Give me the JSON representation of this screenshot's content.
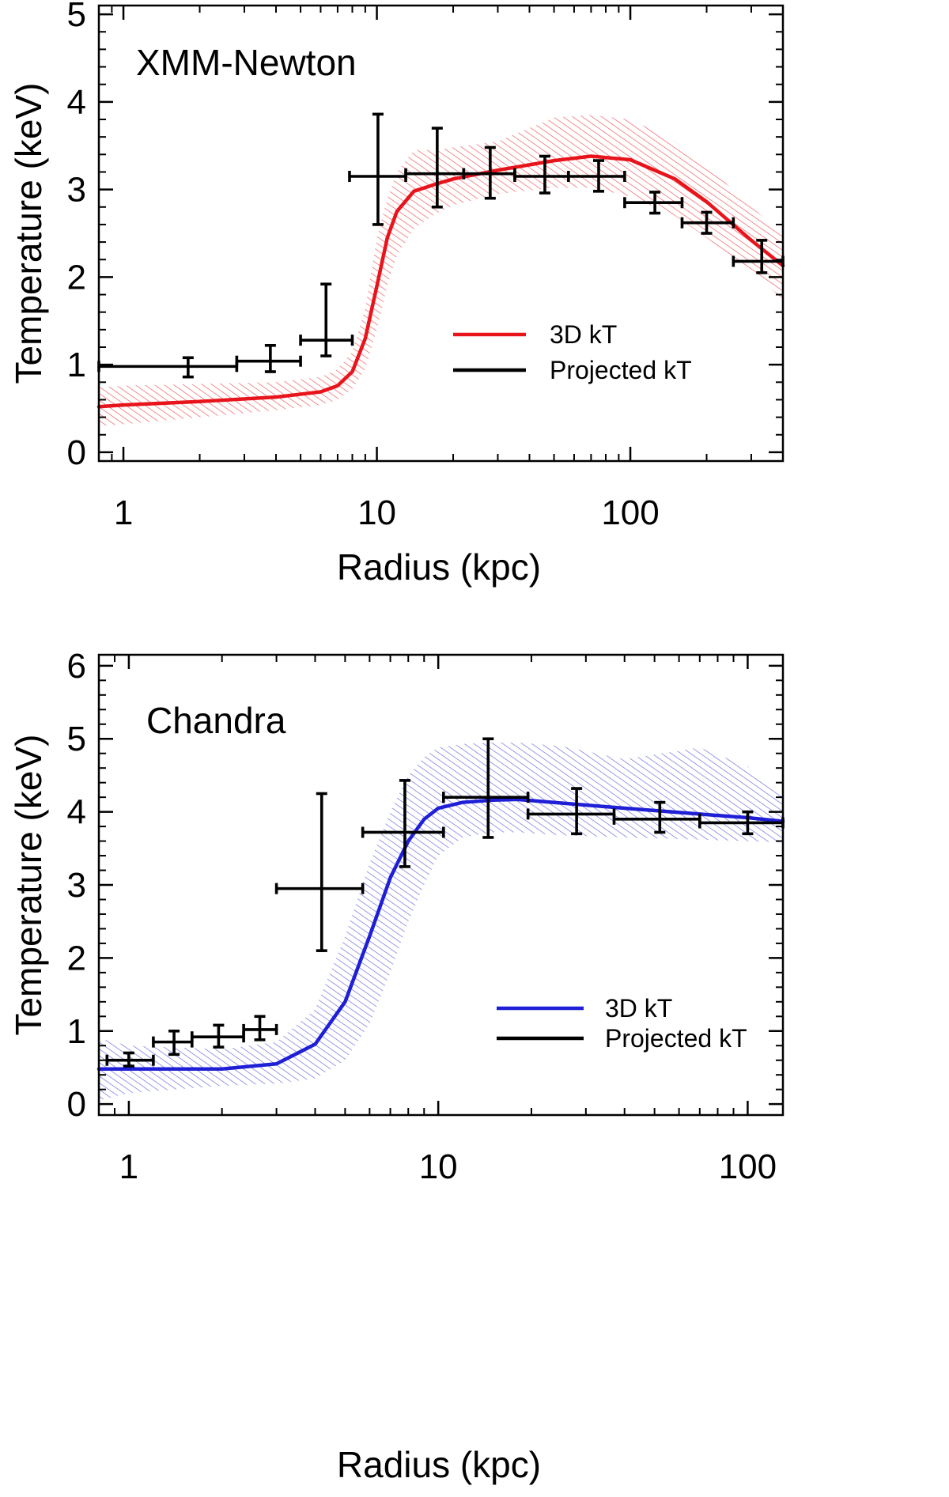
{
  "chart_data": [
    {
      "type": "line",
      "title": "XMM-Newton",
      "xlabel": "Radius (kpc)",
      "ylabel": "Temperature (keV)",
      "xscale": "log",
      "xlim": [
        0.8,
        400
      ],
      "ylim": [
        -0.1,
        5.1
      ],
      "xticks": [
        1,
        10,
        100
      ],
      "xtick_labels": [
        "1",
        "10",
        "100"
      ],
      "yticks": [
        0,
        1,
        2,
        3,
        4,
        5
      ],
      "ytick_labels": [
        "0",
        "1",
        "2",
        "3",
        "4",
        "5"
      ],
      "colors": {
        "model": "#e8141b",
        "band": "#e8141b",
        "data": "#000000"
      },
      "legend": {
        "position": "lower-right",
        "entries": [
          "3D kT",
          "Projected kT"
        ]
      },
      "series": [
        {
          "name": "3D kT",
          "kind": "model_line",
          "x": [
            0.8,
            1,
            2,
            4,
            6,
            7,
            8,
            9,
            10,
            11,
            12,
            14,
            17,
            20,
            30,
            50,
            70,
            100,
            150,
            200,
            300,
            400
          ],
          "y": [
            0.52,
            0.54,
            0.58,
            0.63,
            0.69,
            0.76,
            0.92,
            1.3,
            1.9,
            2.45,
            2.75,
            2.98,
            3.06,
            3.12,
            3.22,
            3.33,
            3.38,
            3.34,
            3.12,
            2.86,
            2.42,
            2.13
          ],
          "lower": [
            0.3,
            0.32,
            0.4,
            0.48,
            0.54,
            0.6,
            0.72,
            0.95,
            1.4,
            1.9,
            2.25,
            2.55,
            2.72,
            2.82,
            2.95,
            3.02,
            3.02,
            2.92,
            2.7,
            2.45,
            2.05,
            1.75
          ],
          "upper": [
            0.74,
            0.76,
            0.78,
            0.8,
            0.86,
            0.95,
            1.15,
            1.65,
            2.45,
            2.9,
            3.2,
            3.45,
            3.45,
            3.48,
            3.55,
            3.82,
            3.85,
            3.8,
            3.55,
            3.28,
            2.8,
            2.5
          ]
        },
        {
          "name": "Projected kT",
          "kind": "data_points",
          "points": [
            {
              "x": 1.8,
              "xlo": 0.8,
              "xhi": 2.8,
              "y": 0.98,
              "ylo": 0.86,
              "yhi": 1.08
            },
            {
              "x": 3.8,
              "xlo": 2.8,
              "xhi": 5.0,
              "y": 1.04,
              "ylo": 0.92,
              "yhi": 1.22
            },
            {
              "x": 6.3,
              "xlo": 5.0,
              "xhi": 8.0,
              "y": 1.28,
              "ylo": 1.1,
              "yhi": 1.92
            },
            {
              "x": 10.1,
              "xlo": 7.8,
              "xhi": 13.0,
              "y": 3.15,
              "ylo": 2.6,
              "yhi": 3.86
            },
            {
              "x": 17.3,
              "xlo": 13.0,
              "xhi": 22.0,
              "y": 3.18,
              "ylo": 2.8,
              "yhi": 3.7
            },
            {
              "x": 28.0,
              "xlo": 22.0,
              "xhi": 35.0,
              "y": 3.18,
              "ylo": 2.9,
              "yhi": 3.48
            },
            {
              "x": 46.0,
              "xlo": 35.0,
              "xhi": 57.0,
              "y": 3.15,
              "ylo": 2.96,
              "yhi": 3.38
            },
            {
              "x": 75.0,
              "xlo": 57.0,
              "xhi": 95.0,
              "y": 3.15,
              "ylo": 2.98,
              "yhi": 3.33
            },
            {
              "x": 125.0,
              "xlo": 95.0,
              "xhi": 160.0,
              "y": 2.85,
              "ylo": 2.73,
              "yhi": 2.97
            },
            {
              "x": 200.0,
              "xlo": 160.0,
              "xhi": 255.0,
              "y": 2.62,
              "ylo": 2.5,
              "yhi": 2.74
            },
            {
              "x": 330.0,
              "xlo": 255.0,
              "xhi": 400.0,
              "y": 2.18,
              "ylo": 2.05,
              "yhi": 2.42
            }
          ]
        }
      ]
    },
    {
      "type": "line",
      "title": "Chandra",
      "xlabel": "Radius (kpc)",
      "ylabel": "Temperature (keV)",
      "xscale": "log",
      "xlim": [
        0.8,
        130
      ],
      "ylim": [
        -0.15,
        6.15
      ],
      "xticks": [
        1,
        10,
        100
      ],
      "xtick_labels": [
        "1",
        "10",
        "100"
      ],
      "yticks": [
        0,
        1,
        2,
        3,
        4,
        5,
        6
      ],
      "ytick_labels": [
        "0",
        "1",
        "2",
        "3",
        "4",
        "5",
        "6"
      ],
      "colors": {
        "model": "#1f1fd6",
        "band": "#2f2fd0",
        "data": "#000000"
      },
      "legend": {
        "position": "lower-right",
        "entries": [
          "3D kT",
          "Projected kT"
        ]
      },
      "series": [
        {
          "name": "3D kT",
          "kind": "model_line",
          "x": [
            0.8,
            1,
            2,
            3,
            4,
            5,
            6,
            7,
            8,
            9,
            10,
            12,
            15,
            18,
            25,
            40,
            70,
            100,
            130
          ],
          "y": [
            0.48,
            0.48,
            0.48,
            0.55,
            0.82,
            1.4,
            2.3,
            3.1,
            3.6,
            3.9,
            4.05,
            4.13,
            4.16,
            4.17,
            4.12,
            4.05,
            3.97,
            3.92,
            3.87
          ],
          "lower": [
            0.05,
            0.15,
            0.25,
            0.28,
            0.35,
            0.6,
            1.1,
            1.8,
            2.5,
            3.0,
            3.4,
            3.65,
            3.72,
            3.72,
            3.68,
            3.65,
            3.62,
            3.6,
            3.58
          ],
          "upper": [
            0.9,
            0.8,
            0.75,
            0.85,
            1.3,
            2.3,
            3.3,
            4.0,
            4.5,
            4.75,
            4.88,
            4.93,
            4.95,
            4.95,
            4.9,
            4.72,
            4.88,
            4.62,
            4.2
          ]
        },
        {
          "name": "Projected kT",
          "kind": "data_points",
          "points": [
            {
              "x": 1.0,
              "xlo": 0.85,
              "xhi": 1.2,
              "y": 0.6,
              "ylo": 0.52,
              "yhi": 0.7
            },
            {
              "x": 1.4,
              "xlo": 1.2,
              "xhi": 1.6,
              "y": 0.85,
              "ylo": 0.68,
              "yhi": 1.0
            },
            {
              "x": 1.95,
              "xlo": 1.6,
              "xhi": 2.35,
              "y": 0.92,
              "ylo": 0.78,
              "yhi": 1.08
            },
            {
              "x": 2.65,
              "xlo": 2.35,
              "xhi": 3.0,
              "y": 1.02,
              "ylo": 0.88,
              "yhi": 1.2
            },
            {
              "x": 4.2,
              "xlo": 3.0,
              "xhi": 5.7,
              "y": 2.95,
              "ylo": 2.1,
              "yhi": 4.25
            },
            {
              "x": 7.8,
              "xlo": 5.7,
              "xhi": 10.4,
              "y": 3.72,
              "ylo": 3.25,
              "yhi": 4.43
            },
            {
              "x": 14.5,
              "xlo": 10.4,
              "xhi": 19.5,
              "y": 4.2,
              "ylo": 3.65,
              "yhi": 5.0
            },
            {
              "x": 28.0,
              "xlo": 19.5,
              "xhi": 37.0,
              "y": 3.97,
              "ylo": 3.7,
              "yhi": 4.32
            },
            {
              "x": 52.0,
              "xlo": 37.0,
              "xhi": 70.0,
              "y": 3.9,
              "ylo": 3.72,
              "yhi": 4.13
            },
            {
              "x": 100.0,
              "xlo": 70.0,
              "xhi": 130.0,
              "y": 3.85,
              "ylo": 3.7,
              "yhi": 4.0
            }
          ]
        }
      ]
    }
  ]
}
